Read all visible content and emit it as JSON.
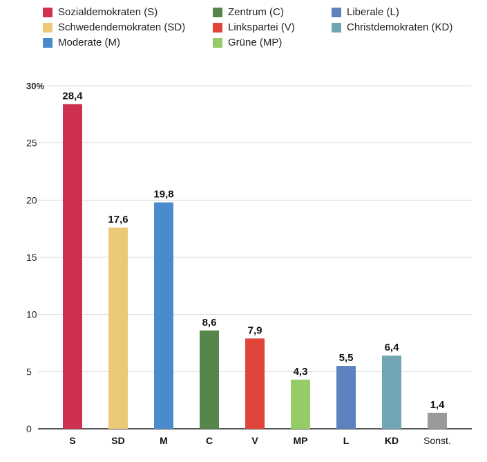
{
  "legend": [
    {
      "label": "Sozialdemokraten (S)",
      "color": "#d0304f"
    },
    {
      "label": "Zentrum (C)",
      "color": "#568549"
    },
    {
      "label": "Liberale (L)",
      "color": "#5d82be"
    },
    {
      "label": "Schwedendemokraten (SD)",
      "color": "#ecc978"
    },
    {
      "label": "Linkspartei (V)",
      "color": "#e0453a"
    },
    {
      "label": "Christdemokraten (KD)",
      "color": "#70a5b3"
    },
    {
      "label": "Moderate (M)",
      "color": "#4a8ccb"
    },
    {
      "label": "Grüne (MP)",
      "color": "#95cc68"
    }
  ],
  "chart_data": {
    "type": "bar",
    "categories": [
      "S",
      "SD",
      "M",
      "C",
      "V",
      "MP",
      "L",
      "KD",
      "Sonst."
    ],
    "values": [
      28.4,
      17.6,
      19.8,
      8.6,
      7.9,
      4.3,
      5.5,
      6.4,
      1.4
    ],
    "value_labels": [
      "28,4",
      "17,6",
      "19,8",
      "8,6",
      "7,9",
      "4,3",
      "5,5",
      "6,4",
      "1,4"
    ],
    "colors": [
      "#d0304f",
      "#ecc978",
      "#4a8ccb",
      "#568549",
      "#e0453a",
      "#95cc68",
      "#5d82be",
      "#70a5b3",
      "#9a9a9a"
    ],
    "y_ticks": [
      0,
      5,
      10,
      15,
      20,
      25,
      30
    ],
    "y_tick_labels": [
      "0",
      "5",
      "10",
      "15",
      "20",
      "25",
      "30%"
    ],
    "ylim": [
      0,
      30
    ],
    "grid": true,
    "legend_position": "top"
  }
}
